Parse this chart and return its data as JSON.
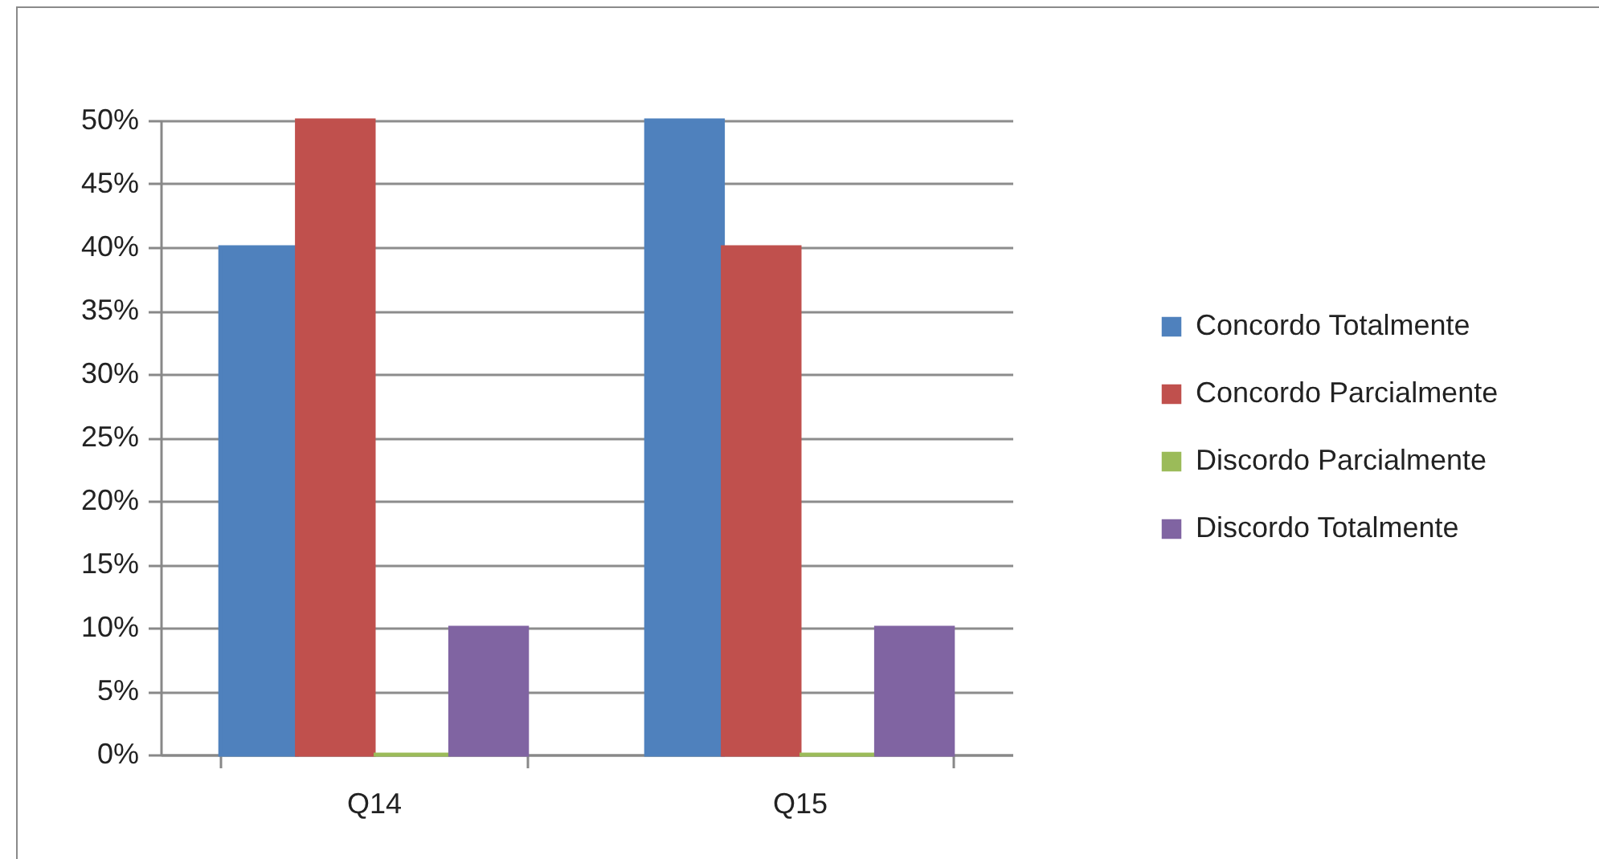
{
  "chart_data": {
    "type": "bar",
    "categories": [
      "Q14",
      "Q15"
    ],
    "series": [
      {
        "name": "Concordo Totalmente",
        "color": "#4f81bd",
        "values": [
          40,
          50
        ]
      },
      {
        "name": "Concordo Parcialmente",
        "color": "#c0504d",
        "values": [
          50,
          40
        ]
      },
      {
        "name": "Discordo Parcialmente",
        "color": "#9bbb59",
        "values": [
          0,
          0
        ]
      },
      {
        "name": "Discordo Totalmente",
        "color": "#8064a2",
        "values": [
          10,
          10
        ]
      }
    ],
    "ylim": [
      0,
      50
    ],
    "yticks": [
      {
        "value": 0,
        "label": "0%"
      },
      {
        "value": 5,
        "label": "5%"
      },
      {
        "value": 10,
        "label": "10%"
      },
      {
        "value": 15,
        "label": "15%"
      },
      {
        "value": 20,
        "label": "20%"
      },
      {
        "value": 25,
        "label": "25%"
      },
      {
        "value": 30,
        "label": "30%"
      },
      {
        "value": 35,
        "label": "35%"
      },
      {
        "value": 40,
        "label": "40%"
      },
      {
        "value": 45,
        "label": "45%"
      },
      {
        "value": 50,
        "label": "50%"
      }
    ],
    "grid": "y",
    "legend": "right"
  }
}
